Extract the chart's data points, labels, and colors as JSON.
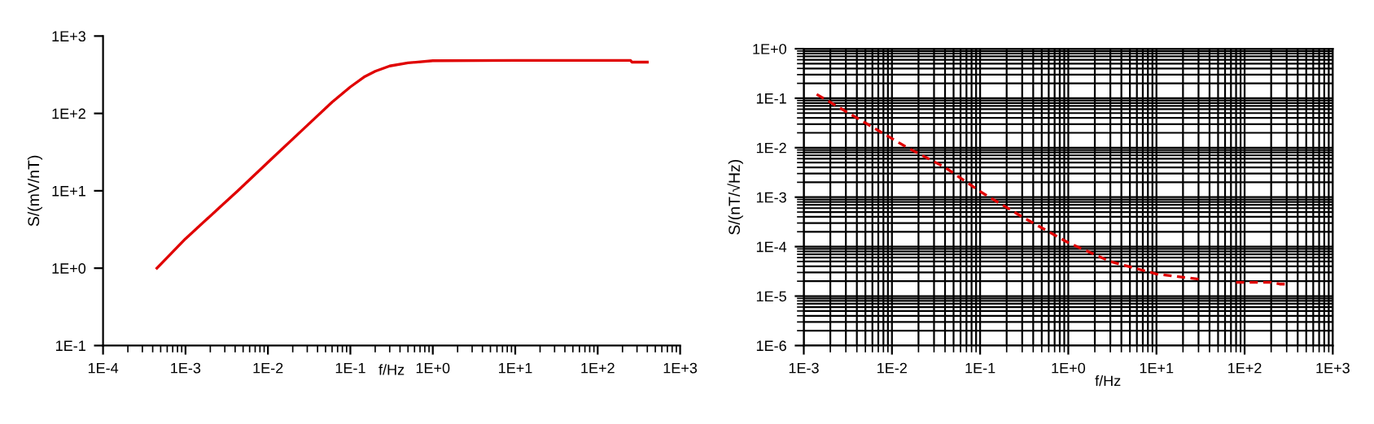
{
  "chart_data": [
    {
      "type": "line",
      "xlabel": "f/Hz",
      "ylabel": "S/(mV/nT)",
      "log": "xy",
      "grid": false,
      "xlim": [
        0.0001,
        1000
      ],
      "ylim": [
        0.1,
        1000
      ],
      "xticks": [
        {
          "value": 0.0001,
          "label": "1E-4"
        },
        {
          "value": 0.001,
          "label": "1E-3"
        },
        {
          "value": 0.01,
          "label": "1E-2"
        },
        {
          "value": 0.1,
          "label": "1E-1"
        },
        {
          "value": 1,
          "label": "1E+0"
        },
        {
          "value": 10,
          "label": "1E+1"
        },
        {
          "value": 100,
          "label": "1E+2"
        },
        {
          "value": 1000,
          "label": "1E+3"
        }
      ],
      "yticks": [
        {
          "value": 0.1,
          "label": "1E-1"
        },
        {
          "value": 1,
          "label": "1E+0"
        },
        {
          "value": 10,
          "label": "1E+1"
        },
        {
          "value": 100,
          "label": "1E+2"
        },
        {
          "value": 1000,
          "label": "1E+3"
        }
      ],
      "series": [
        {
          "color": "#e00000",
          "x": [
            0.00045,
            0.001,
            0.0043,
            0.012,
            0.03,
            0.06,
            0.1,
            0.15,
            0.2,
            0.3,
            0.5,
            1,
            10,
            250,
            260,
            400
          ],
          "values": [
            1,
            2.4,
            10,
            28,
            70,
            140,
            220,
            300,
            350,
            410,
            450,
            480,
            485,
            485,
            460,
            460
          ]
        }
      ]
    },
    {
      "type": "line",
      "xlabel": "f/Hz",
      "ylabel": "S/(nT/√Hz)",
      "log": "xy",
      "grid": true,
      "xlim": [
        0.001,
        1000
      ],
      "ylim": [
        1e-06,
        1
      ],
      "xticks": [
        {
          "value": 0.001,
          "label": "1E-3"
        },
        {
          "value": 0.01,
          "label": "1E-2"
        },
        {
          "value": 0.1,
          "label": "1E-1"
        },
        {
          "value": 1,
          "label": "1E+0"
        },
        {
          "value": 10,
          "label": "1E+1"
        },
        {
          "value": 100,
          "label": "1E+2"
        },
        {
          "value": 1000,
          "label": "1E+3"
        }
      ],
      "yticks": [
        {
          "value": 1e-06,
          "label": "1E-6"
        },
        {
          "value": 1e-05,
          "label": "1E-5"
        },
        {
          "value": 0.0001,
          "label": "1E-4"
        },
        {
          "value": 0.001,
          "label": "1E-3"
        },
        {
          "value": 0.01,
          "label": "1E-2"
        },
        {
          "value": 0.1,
          "label": "1E-1"
        },
        {
          "value": 1,
          "label": "1E+0"
        }
      ],
      "series": [
        {
          "color": "#e00000",
          "line_style": "dashed",
          "x": [
            0.0014,
            0.004,
            0.015,
            0.04,
            0.1,
            0.3,
            1,
            3,
            10,
            30,
            50,
            80,
            200,
            250,
            300
          ],
          "values": [
            0.12,
            0.04,
            0.01,
            0.004,
            0.0013,
            0.0004,
            0.00012,
            5e-05,
            2.8e-05,
            2.2e-05,
            null,
            1.9e-05,
            1.9e-05,
            1.75e-05,
            1.75e-05
          ]
        }
      ]
    }
  ]
}
